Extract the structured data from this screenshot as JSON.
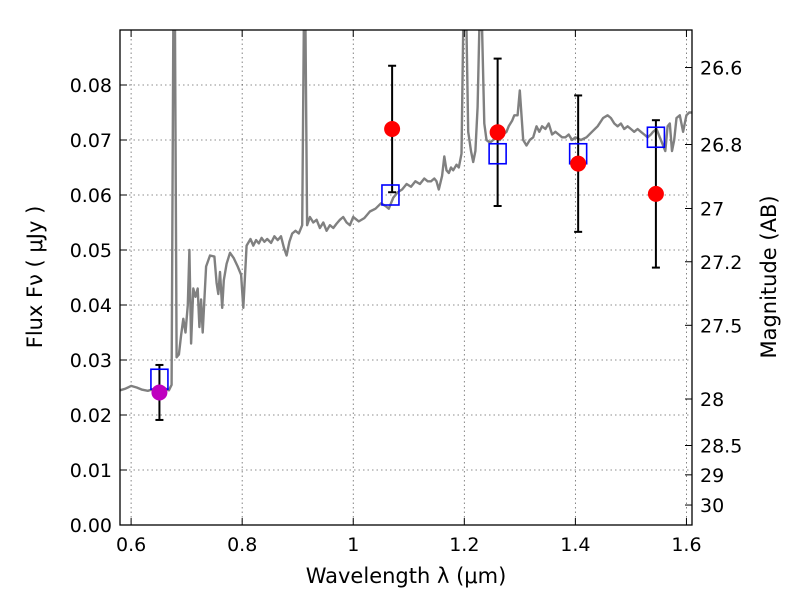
{
  "chart_data": {
    "type": "scatter",
    "xlabel": "Wavelength  λ (μm)",
    "ylabel": "Flux  Fν  ( μJy )",
    "ylabel_right": "Magnitude (AB)",
    "xlim": [
      0.58,
      1.61
    ],
    "ylim": [
      0.0,
      0.09
    ],
    "grid": true,
    "x_ticks": [
      {
        "value": 0.6,
        "label": "0.6"
      },
      {
        "value": 0.8,
        "label": "0.8"
      },
      {
        "value": 1.0,
        "label": "1"
      },
      {
        "value": 1.2,
        "label": "1.2"
      },
      {
        "value": 1.4,
        "label": "1.4"
      },
      {
        "value": 1.6,
        "label": "1.6"
      }
    ],
    "y_ticks": [
      {
        "value": 0.0,
        "label": "0.00"
      },
      {
        "value": 0.01,
        "label": "0.01"
      },
      {
        "value": 0.02,
        "label": "0.02"
      },
      {
        "value": 0.03,
        "label": "0.03"
      },
      {
        "value": 0.04,
        "label": "0.04"
      },
      {
        "value": 0.05,
        "label": "0.05"
      },
      {
        "value": 0.06,
        "label": "0.06"
      },
      {
        "value": 0.07,
        "label": "0.07"
      },
      {
        "value": 0.08,
        "label": "0.08"
      }
    ],
    "right_ticks": [
      {
        "mag": 26.6,
        "label": "26.6"
      },
      {
        "mag": 26.8,
        "label": "26.8"
      },
      {
        "mag": 27.0,
        "label": "27"
      },
      {
        "mag": 27.2,
        "label": "27.2"
      },
      {
        "mag": 27.5,
        "label": "27.5"
      },
      {
        "mag": 28.0,
        "label": "28"
      },
      {
        "mag": 28.5,
        "label": "28.5"
      },
      {
        "mag": 29.0,
        "label": "29"
      },
      {
        "mag": 30.0,
        "label": "30"
      }
    ],
    "model_spectrum": {
      "color": "#808080",
      "points": [
        [
          0.58,
          0.0245
        ],
        [
          0.59,
          0.0248
        ],
        [
          0.6,
          0.0253
        ],
        [
          0.61,
          0.025
        ],
        [
          0.62,
          0.0246
        ],
        [
          0.63,
          0.0244
        ],
        [
          0.64,
          0.0247
        ],
        [
          0.65,
          0.0252
        ],
        [
          0.66,
          0.0249
        ],
        [
          0.668,
          0.0245
        ],
        [
          0.673,
          0.0255
        ],
        [
          0.676,
          0.09
        ],
        [
          0.679,
          0.09
        ],
        [
          0.682,
          0.0305
        ],
        [
          0.686,
          0.031
        ],
        [
          0.69,
          0.0345
        ],
        [
          0.694,
          0.0375
        ],
        [
          0.698,
          0.035
        ],
        [
          0.702,
          0.04
        ],
        [
          0.705,
          0.05
        ],
        [
          0.708,
          0.033
        ],
        [
          0.712,
          0.043
        ],
        [
          0.716,
          0.0415
        ],
        [
          0.72,
          0.043
        ],
        [
          0.723,
          0.036
        ],
        [
          0.726,
          0.041
        ],
        [
          0.729,
          0.035
        ],
        [
          0.735,
          0.047
        ],
        [
          0.742,
          0.049
        ],
        [
          0.75,
          0.0488
        ],
        [
          0.754,
          0.044
        ],
        [
          0.757,
          0.042
        ],
        [
          0.76,
          0.046
        ],
        [
          0.764,
          0.0395
        ],
        [
          0.767,
          0.0445
        ],
        [
          0.772,
          0.0475
        ],
        [
          0.778,
          0.0495
        ],
        [
          0.785,
          0.0485
        ],
        [
          0.792,
          0.047
        ],
        [
          0.798,
          0.0455
        ],
        [
          0.802,
          0.0395
        ],
        [
          0.808,
          0.0508
        ],
        [
          0.815,
          0.052
        ],
        [
          0.82,
          0.0508
        ],
        [
          0.825,
          0.0518
        ],
        [
          0.83,
          0.0512
        ],
        [
          0.835,
          0.0522
        ],
        [
          0.84,
          0.0515
        ],
        [
          0.845,
          0.052
        ],
        [
          0.852,
          0.0513
        ],
        [
          0.858,
          0.0525
        ],
        [
          0.864,
          0.0518
        ],
        [
          0.87,
          0.0525
        ],
        [
          0.875,
          0.0505
        ],
        [
          0.88,
          0.049
        ],
        [
          0.885,
          0.0515
        ],
        [
          0.89,
          0.053
        ],
        [
          0.896,
          0.0535
        ],
        [
          0.902,
          0.053
        ],
        [
          0.908,
          0.0545
        ],
        [
          0.911,
          0.09
        ],
        [
          0.914,
          0.09
        ],
        [
          0.917,
          0.0545
        ],
        [
          0.922,
          0.056
        ],
        [
          0.928,
          0.055
        ],
        [
          0.934,
          0.0555
        ],
        [
          0.94,
          0.054
        ],
        [
          0.946,
          0.055
        ],
        [
          0.952,
          0.0535
        ],
        [
          0.958,
          0.0545
        ],
        [
          0.964,
          0.054
        ],
        [
          0.97,
          0.0548
        ],
        [
          0.976,
          0.0555
        ],
        [
          0.982,
          0.056
        ],
        [
          0.988,
          0.055
        ],
        [
          0.994,
          0.0545
        ],
        [
          1.0,
          0.056
        ],
        [
          1.01,
          0.0552
        ],
        [
          1.02,
          0.0558
        ],
        [
          1.03,
          0.057
        ],
        [
          1.04,
          0.0575
        ],
        [
          1.05,
          0.0585
        ],
        [
          1.058,
          0.058
        ],
        [
          1.064,
          0.0575
        ],
        [
          1.072,
          0.0595
        ],
        [
          1.08,
          0.0605
        ],
        [
          1.088,
          0.061
        ],
        [
          1.096,
          0.062
        ],
        [
          1.104,
          0.0615
        ],
        [
          1.112,
          0.0625
        ],
        [
          1.12,
          0.062
        ],
        [
          1.128,
          0.063
        ],
        [
          1.134,
          0.0625
        ],
        [
          1.14,
          0.0625
        ],
        [
          1.146,
          0.063
        ],
        [
          1.15,
          0.0625
        ],
        [
          1.154,
          0.061
        ],
        [
          1.16,
          0.0635
        ],
        [
          1.164,
          0.067
        ],
        [
          1.168,
          0.0645
        ],
        [
          1.172,
          0.064
        ],
        [
          1.176,
          0.065
        ],
        [
          1.18,
          0.0645
        ],
        [
          1.186,
          0.0655
        ],
        [
          1.19,
          0.065
        ],
        [
          1.195,
          0.0675
        ],
        [
          1.198,
          0.09
        ],
        [
          1.204,
          0.09
        ],
        [
          1.207,
          0.0715
        ],
        [
          1.212,
          0.068
        ],
        [
          1.216,
          0.066
        ],
        [
          1.22,
          0.068
        ],
        [
          1.224,
          0.076
        ],
        [
          1.227,
          0.09
        ],
        [
          1.232,
          0.09
        ],
        [
          1.236,
          0.073
        ],
        [
          1.24,
          0.07
        ],
        [
          1.246,
          0.0695
        ],
        [
          1.252,
          0.07
        ],
        [
          1.258,
          0.0705
        ],
        [
          1.264,
          0.07
        ],
        [
          1.27,
          0.071
        ],
        [
          1.276,
          0.0715
        ],
        [
          1.28,
          0.0725
        ],
        [
          1.286,
          0.0735
        ],
        [
          1.29,
          0.0745
        ],
        [
          1.296,
          0.0745
        ],
        [
          1.3,
          0.079
        ],
        [
          1.306,
          0.07
        ],
        [
          1.312,
          0.069
        ],
        [
          1.318,
          0.07
        ],
        [
          1.324,
          0.0705
        ],
        [
          1.33,
          0.0725
        ],
        [
          1.335,
          0.0715
        ],
        [
          1.34,
          0.0725
        ],
        [
          1.346,
          0.072
        ],
        [
          1.352,
          0.073
        ],
        [
          1.358,
          0.071
        ],
        [
          1.364,
          0.0715
        ],
        [
          1.37,
          0.071
        ],
        [
          1.376,
          0.0705
        ],
        [
          1.382,
          0.0705
        ],
        [
          1.388,
          0.071
        ],
        [
          1.394,
          0.07
        ],
        [
          1.4,
          0.0705
        ],
        [
          1.41,
          0.07
        ],
        [
          1.42,
          0.0705
        ],
        [
          1.43,
          0.0715
        ],
        [
          1.44,
          0.0725
        ],
        [
          1.45,
          0.074
        ],
        [
          1.458,
          0.0745
        ],
        [
          1.464,
          0.074
        ],
        [
          1.47,
          0.073
        ],
        [
          1.476,
          0.0725
        ],
        [
          1.482,
          0.073
        ],
        [
          1.488,
          0.072
        ],
        [
          1.494,
          0.0725
        ],
        [
          1.5,
          0.072
        ],
        [
          1.506,
          0.0715
        ],
        [
          1.512,
          0.072
        ],
        [
          1.518,
          0.0715
        ],
        [
          1.524,
          0.071
        ],
        [
          1.53,
          0.0705
        ],
        [
          1.536,
          0.071
        ],
        [
          1.54,
          0.0715
        ],
        [
          1.546,
          0.072
        ],
        [
          1.552,
          0.0705
        ],
        [
          1.558,
          0.069
        ],
        [
          1.562,
          0.068
        ],
        [
          1.566,
          0.0725
        ],
        [
          1.57,
          0.073
        ],
        [
          1.574,
          0.068
        ],
        [
          1.578,
          0.07
        ],
        [
          1.582,
          0.074
        ],
        [
          1.588,
          0.0745
        ],
        [
          1.594,
          0.0715
        ],
        [
          1.6,
          0.0745
        ],
        [
          1.605,
          0.075
        ],
        [
          1.61,
          0.075
        ]
      ]
    },
    "model_photometry": {
      "color": "#0000ff",
      "points": [
        {
          "x": 0.651,
          "y": 0.0265
        },
        {
          "x": 1.067,
          "y": 0.06
        },
        {
          "x": 1.26,
          "y": 0.0675
        },
        {
          "x": 1.405,
          "y": 0.0675
        },
        {
          "x": 1.545,
          "y": 0.0705
        }
      ]
    },
    "observed": [
      {
        "x": 0.651,
        "y": 0.0241,
        "err_low": 0.0191,
        "err_high": 0.0291,
        "color": "#bf00bf"
      },
      {
        "x": 1.07,
        "y": 0.072,
        "err_low": 0.0605,
        "err_high": 0.0835,
        "color": "#ff0000"
      },
      {
        "x": 1.26,
        "y": 0.0714,
        "err_low": 0.058,
        "err_high": 0.0848,
        "color": "#ff0000"
      },
      {
        "x": 1.405,
        "y": 0.0657,
        "err_low": 0.0533,
        "err_high": 0.0781,
        "color": "#ff0000"
      },
      {
        "x": 1.545,
        "y": 0.0602,
        "err_low": 0.0468,
        "err_high": 0.0736,
        "color": "#ff0000"
      }
    ]
  }
}
